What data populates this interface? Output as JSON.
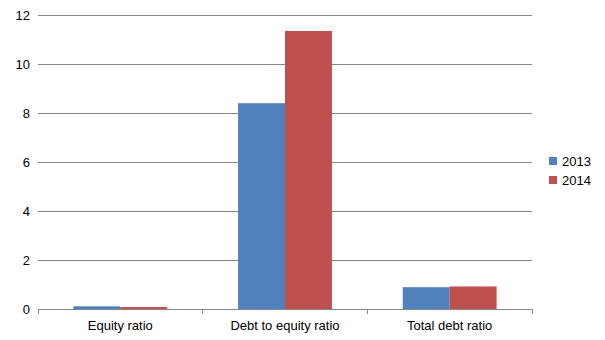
{
  "chart_data": {
    "type": "bar",
    "categories": [
      "Equity ratio",
      "Debt to equity ratio",
      "Total debt ratio"
    ],
    "series": [
      {
        "name": "2013",
        "color": "#4f81bd",
        "values": [
          0.11,
          8.4,
          0.89
        ]
      },
      {
        "name": "2014",
        "color": "#c0504d",
        "values": [
          0.08,
          11.35,
          0.92
        ]
      }
    ],
    "ylim": [
      0,
      12
    ],
    "yticks": [
      0,
      2,
      4,
      6,
      8,
      10,
      12
    ],
    "grid": true,
    "legend": "right"
  }
}
